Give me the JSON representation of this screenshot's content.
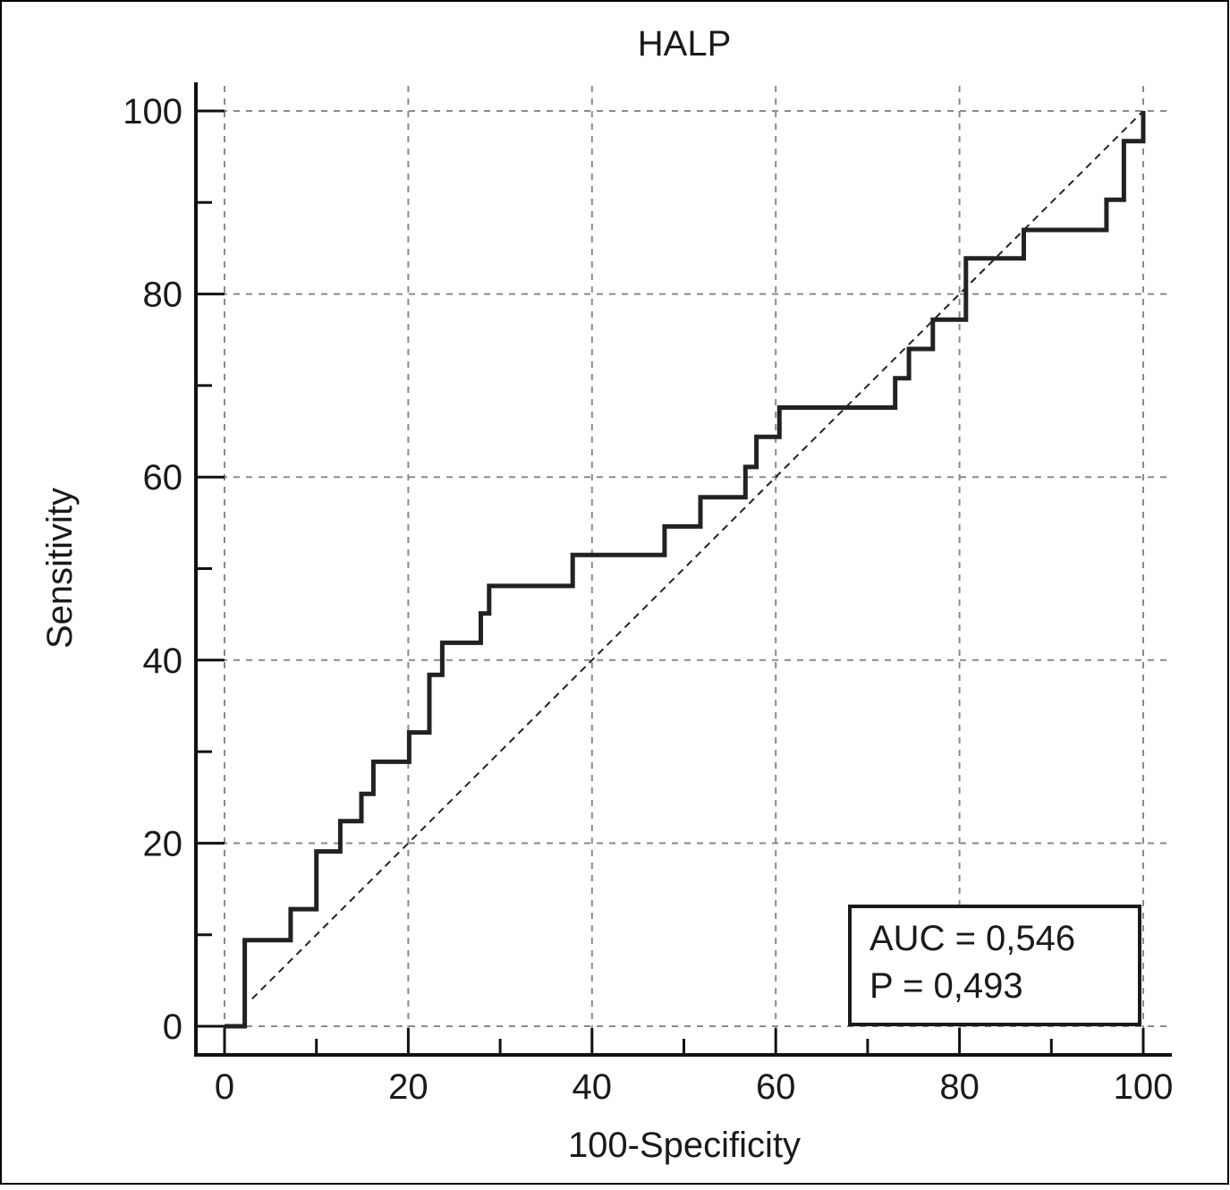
{
  "chart_data": {
    "type": "line",
    "title": "HALP",
    "xlabel": "100-Specificity",
    "ylabel": "Sensitivity",
    "xlim": [
      0,
      100
    ],
    "ylim": [
      0,
      100
    ],
    "xticks": [
      0,
      20,
      40,
      60,
      80,
      100
    ],
    "yticks": [
      0,
      20,
      40,
      60,
      80,
      100
    ],
    "grid": true,
    "annotation": {
      "lines": [
        "AUC = 0,546",
        "P = 0,493"
      ],
      "placement": "bottom-right"
    },
    "reference_line": {
      "x": [
        0,
        100
      ],
      "y": [
        0,
        100
      ],
      "style": "dashed"
    },
    "series": [
      {
        "style": "step",
        "color": "#222222",
        "x": [
          0,
          2.2,
          2.2,
          7.2,
          7.2,
          10.0,
          10.0,
          12.6,
          12.6,
          14.9,
          14.9,
          16.2,
          16.2,
          20.1,
          20.1,
          22.3,
          22.3,
          23.7,
          23.7,
          27.9,
          27.9,
          28.8,
          28.8,
          37.9,
          37.9,
          47.9,
          47.9,
          51.8,
          51.8,
          56.7,
          56.7,
          57.9,
          57.9,
          60.4,
          60.4,
          73.0,
          73.0,
          74.5,
          74.5,
          77.1,
          77.1,
          80.7,
          80.7,
          87.0,
          87.0,
          96.0,
          96.0,
          97.9,
          97.9,
          100,
          100
        ],
        "y": [
          0,
          0,
          9.4,
          9.4,
          12.8,
          12.8,
          19.1,
          19.1,
          22.4,
          22.4,
          25.4,
          25.4,
          28.9,
          28.9,
          32.1,
          32.1,
          38.4,
          38.4,
          41.9,
          41.9,
          45.1,
          45.1,
          48.1,
          48.1,
          51.5,
          51.5,
          54.6,
          54.6,
          57.8,
          57.8,
          61.1,
          61.1,
          64.4,
          64.4,
          67.6,
          67.6,
          70.8,
          70.8,
          74.0,
          74.0,
          77.2,
          77.2,
          83.9,
          83.9,
          87.0,
          87.0,
          90.3,
          90.3,
          96.7,
          96.7,
          100
        ]
      }
    ]
  }
}
